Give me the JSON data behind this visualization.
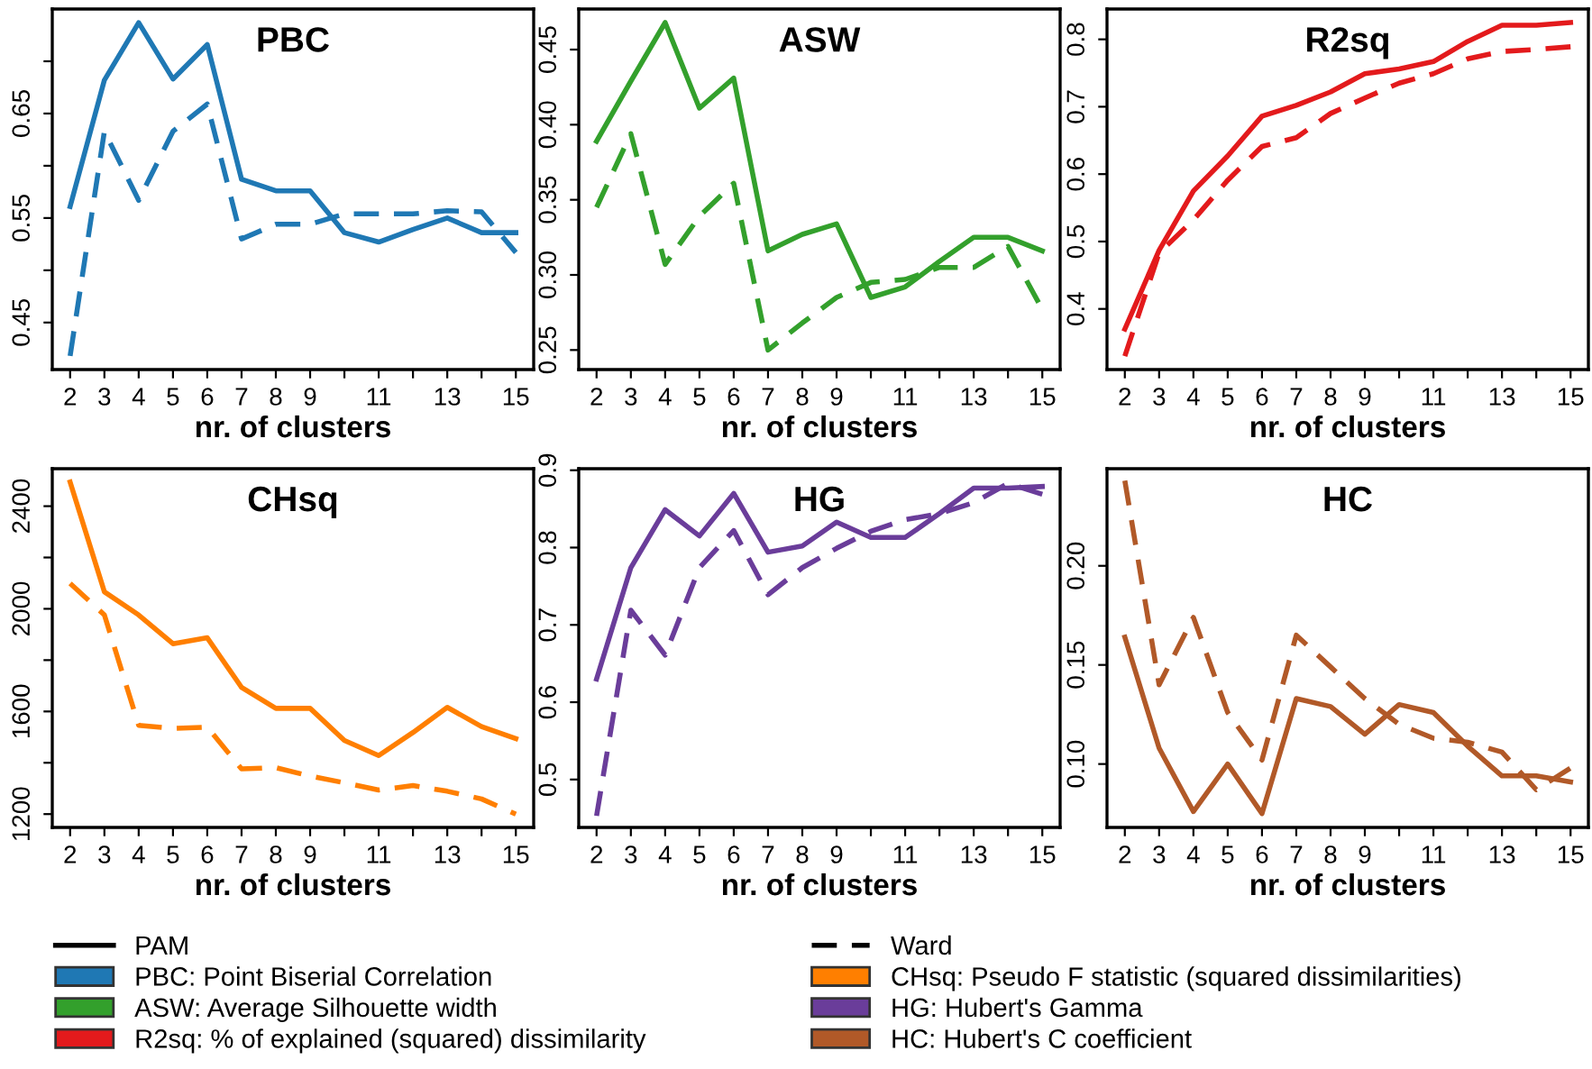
{
  "chart_data": [
    {
      "type": "line",
      "title": "PBC",
      "xlabel": "nr. of clusters",
      "x": [
        2,
        3,
        4,
        5,
        6,
        7,
        8,
        9,
        10,
        11,
        12,
        13,
        14,
        15
      ],
      "xlim": [
        1.48,
        15.52
      ],
      "xticks": [
        2,
        3,
        4,
        5,
        6,
        7,
        8,
        9,
        {
          "value": 10,
          "label": null
        },
        11,
        {
          "value": 12,
          "label": null
        },
        13,
        {
          "value": 14,
          "label": null
        },
        15
      ],
      "ylim": [
        0.405,
        0.75
      ],
      "yticks": [
        0.45,
        {
          "value": 0.5,
          "label": null
        },
        0.55,
        {
          "value": 0.6,
          "label": null
        },
        0.65,
        {
          "value": 0.7,
          "label": null
        }
      ],
      "annotations": [
        "PAM",
        "Ward",
        "PBC: Point Biserial Correlation"
      ],
      "series": [
        {
          "color": "#1f78b4",
          "line_style": "solid",
          "values": [
            0.561,
            0.682,
            0.737,
            0.683,
            0.716,
            0.587,
            0.576,
            0.576,
            0.536,
            0.527,
            0.539,
            0.55,
            0.536,
            0.536
          ]
        },
        {
          "color": "#1f78b4",
          "line_style": "dashed",
          "values": [
            0.418,
            0.633,
            0.567,
            0.633,
            0.659,
            0.53,
            0.544,
            0.544,
            0.554,
            0.554,
            0.554,
            0.557,
            0.556,
            0.517
          ]
        }
      ]
    },
    {
      "type": "line",
      "title": "ASW",
      "xlabel": "nr. of clusters",
      "x": [
        2,
        3,
        4,
        5,
        6,
        7,
        8,
        9,
        10,
        11,
        12,
        13,
        14,
        15
      ],
      "xlim": [
        1.48,
        15.52
      ],
      "xticks": [
        2,
        3,
        4,
        5,
        6,
        7,
        8,
        9,
        {
          "value": 10,
          "label": null
        },
        11,
        {
          "value": 12,
          "label": null
        },
        13,
        {
          "value": 14,
          "label": null
        },
        15
      ],
      "ylim": [
        0.237,
        0.477
      ],
      "yticks": [
        0.25,
        {
          "value": 0.3,
          "label": "0.30"
        },
        0.35,
        {
          "value": 0.4,
          "label": "0.40"
        },
        0.45
      ],
      "annotations": [
        "ASW: Average Silhouette width"
      ],
      "series": [
        {
          "color": "#33a02c",
          "line_style": "solid",
          "values": [
            0.389,
            0.429,
            0.468,
            0.411,
            0.431,
            0.316,
            0.327,
            0.334,
            0.285,
            0.292,
            0.309,
            0.325,
            0.325,
            0.316
          ]
        },
        {
          "color": "#33a02c",
          "line_style": "dashed",
          "values": [
            0.345,
            0.394,
            0.307,
            0.339,
            0.361,
            0.25,
            0.268,
            0.285,
            0.295,
            0.297,
            0.305,
            0.305,
            0.319,
            0.277
          ]
        }
      ]
    },
    {
      "type": "line",
      "title": "R2sq",
      "xlabel": "nr. of clusters",
      "x": [
        2,
        3,
        4,
        5,
        6,
        7,
        8,
        9,
        10,
        11,
        12,
        13,
        14,
        15
      ],
      "xlim": [
        1.48,
        15.52
      ],
      "xticks": [
        2,
        3,
        4,
        5,
        6,
        7,
        8,
        9,
        {
          "value": 10,
          "label": null
        },
        11,
        {
          "value": 12,
          "label": null
        },
        13,
        {
          "value": 14,
          "label": null
        },
        15
      ],
      "ylim": [
        0.31,
        0.845
      ],
      "yticks": [
        0.4,
        0.5,
        0.6,
        0.7,
        0.8
      ],
      "annotations": [
        "R2sq: % of explained (squared) dissimilarity"
      ],
      "series": [
        {
          "color": "#e31a1c",
          "line_style": "solid",
          "values": [
            0.37,
            0.487,
            0.575,
            0.627,
            0.686,
            0.702,
            0.722,
            0.749,
            0.756,
            0.767,
            0.797,
            0.821,
            0.821,
            0.825
          ]
        },
        {
          "color": "#e31a1c",
          "line_style": "dashed",
          "values": [
            0.33,
            0.483,
            0.532,
            0.591,
            0.641,
            0.654,
            0.69,
            0.713,
            0.735,
            0.749,
            0.771,
            0.782,
            0.785,
            0.789
          ]
        }
      ]
    },
    {
      "type": "line",
      "title": "CHsq",
      "xlabel": "nr. of clusters",
      "x": [
        2,
        3,
        4,
        5,
        6,
        7,
        8,
        9,
        10,
        11,
        12,
        13,
        14,
        15
      ],
      "xlim": [
        1.48,
        15.52
      ],
      "xticks": [
        2,
        3,
        4,
        5,
        6,
        7,
        8,
        9,
        {
          "value": 10,
          "label": null
        },
        11,
        {
          "value": 12,
          "label": null
        },
        13,
        {
          "value": 14,
          "label": null
        },
        15
      ],
      "ylim": [
        1148,
        2546
      ],
      "yticks": [
        1200,
        {
          "value": 1400,
          "label": null
        },
        1600,
        {
          "value": 1800,
          "label": null
        },
        2000,
        {
          "value": 2200,
          "label": null
        },
        2400
      ],
      "annotations": [
        "CHsq: Pseudo F statistic (squared dissimilarities)"
      ],
      "series": [
        {
          "color": "#ff7f00",
          "line_style": "solid",
          "values": [
            2494,
            2066,
            1976,
            1864,
            1887,
            1694,
            1612,
            1612,
            1487,
            1428,
            1518,
            1616,
            1541,
            1494
          ]
        },
        {
          "color": "#ff7f00",
          "line_style": "dashed",
          "values": [
            2099,
            1976,
            1546,
            1534,
            1539,
            1376,
            1381,
            1348,
            1322,
            1294,
            1311,
            1289,
            1259,
            1200
          ]
        }
      ]
    },
    {
      "type": "line",
      "title": "HG",
      "xlabel": "nr. of clusters",
      "x": [
        2,
        3,
        4,
        5,
        6,
        7,
        8,
        9,
        10,
        11,
        12,
        13,
        14,
        15
      ],
      "xlim": [
        1.48,
        15.52
      ],
      "xticks": [
        2,
        3,
        4,
        5,
        6,
        7,
        8,
        9,
        {
          "value": 10,
          "label": null
        },
        11,
        {
          "value": 12,
          "label": null
        },
        13,
        {
          "value": 14,
          "label": null
        },
        15
      ],
      "ylim": [
        0.438,
        0.902
      ],
      "yticks": [
        0.5,
        0.6,
        0.7,
        0.8,
        0.9
      ],
      "annotations": [
        "HG: Hubert's Gamma"
      ],
      "series": [
        {
          "color": "#6a3d9a",
          "line_style": "solid",
          "values": [
            0.63,
            0.774,
            0.849,
            0.815,
            0.87,
            0.794,
            0.802,
            0.833,
            0.813,
            0.813,
            0.844,
            0.877,
            0.877,
            0.879
          ]
        },
        {
          "color": "#6a3d9a",
          "line_style": "dashed",
          "values": [
            0.453,
            0.719,
            0.661,
            0.774,
            0.822,
            0.739,
            0.774,
            0.799,
            0.821,
            0.836,
            0.844,
            0.858,
            0.883,
            0.869
          ]
        }
      ]
    },
    {
      "type": "line",
      "title": "HC",
      "xlabel": "nr. of clusters",
      "x": [
        2,
        3,
        4,
        5,
        6,
        7,
        8,
        9,
        10,
        11,
        12,
        13,
        14,
        15
      ],
      "xlim": [
        1.48,
        15.52
      ],
      "xticks": [
        2,
        3,
        4,
        5,
        6,
        7,
        8,
        9,
        {
          "value": 10,
          "label": null
        },
        11,
        {
          "value": 12,
          "label": null
        },
        13,
        {
          "value": 14,
          "label": null
        },
        15
      ],
      "ylim": [
        0.068,
        0.249
      ],
      "yticks": [
        {
          "value": 0.1,
          "label": "0.10"
        },
        0.15,
        {
          "value": 0.2,
          "label": "0.20"
        }
      ],
      "annotations": [
        "HC: Hubert's C coefficient"
      ],
      "series": [
        {
          "color": "#b15928",
          "line_style": "solid",
          "values": [
            0.164,
            0.108,
            0.076,
            0.1,
            0.075,
            0.133,
            0.129,
            0.115,
            0.13,
            0.126,
            0.109,
            0.094,
            0.094,
            0.091
          ]
        },
        {
          "color": "#b15928",
          "line_style": "dashed",
          "values": [
            0.243,
            0.14,
            0.174,
            0.126,
            0.102,
            0.165,
            0.149,
            0.133,
            0.12,
            0.113,
            0.111,
            0.106,
            0.087,
            0.098
          ]
        }
      ]
    }
  ]
}
